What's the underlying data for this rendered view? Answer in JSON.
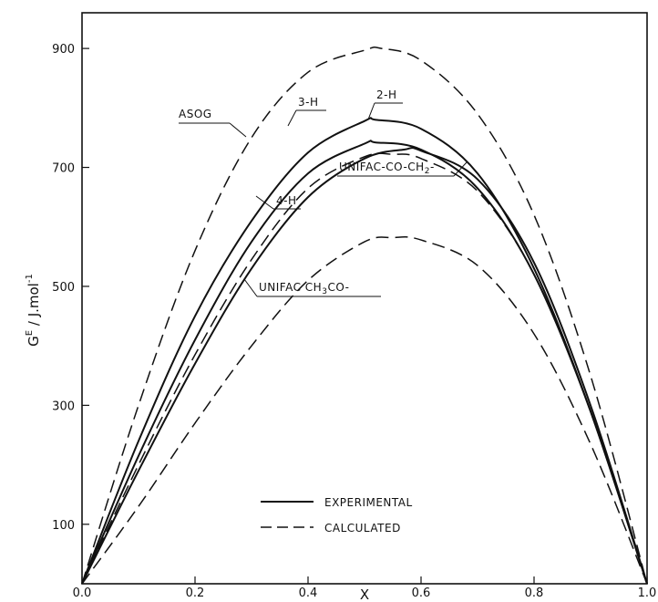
{
  "chart_data": {
    "type": "line",
    "xlabel": "X",
    "ylabel": "G^E / J.mol^-1",
    "xlim": [
      0,
      1
    ],
    "ylim": [
      0,
      960
    ],
    "x_ticks": [
      "0.0",
      "0.2",
      "0.4",
      "0.6",
      "0.8",
      "1.0"
    ],
    "y_ticks": [
      "100",
      "300",
      "500",
      "700",
      "900"
    ],
    "legend": {
      "placement": "bottom-center",
      "entries": [
        {
          "label": "EXPERIMENTAL",
          "style": "solid"
        },
        {
          "label": "CALCULATED",
          "style": "dashed"
        }
      ]
    },
    "series": [
      {
        "name": "3-H",
        "style": "solid",
        "x": [
          0,
          0.1,
          0.2,
          0.3,
          0.4,
          0.5,
          0.52,
          0.6,
          0.7,
          0.8,
          0.9,
          1.0
        ],
        "y": [
          0,
          240,
          450,
          610,
          725,
          778,
          780,
          765,
          690,
          530,
          290,
          0
        ]
      },
      {
        "name": "2-H",
        "style": "solid",
        "x": [
          0,
          0.1,
          0.2,
          0.3,
          0.4,
          0.5,
          0.52,
          0.6,
          0.7,
          0.8,
          0.9,
          1.0
        ],
        "y": [
          0,
          215,
          410,
          575,
          690,
          740,
          742,
          730,
          665,
          520,
          290,
          0
        ]
      },
      {
        "name": "4-H",
        "style": "solid",
        "x": [
          0,
          0.1,
          0.2,
          0.3,
          0.4,
          0.5,
          0.57,
          0.6,
          0.7,
          0.8,
          0.9,
          1.0
        ],
        "y": [
          0,
          190,
          370,
          530,
          650,
          715,
          730,
          728,
          680,
          540,
          300,
          0
        ]
      },
      {
        "name": "ASOG",
        "style": "dashed",
        "x": [
          0,
          0.1,
          0.2,
          0.3,
          0.4,
          0.5,
          0.53,
          0.6,
          0.7,
          0.8,
          0.9,
          1.0
        ],
        "y": [
          0,
          300,
          560,
          750,
          860,
          897,
          900,
          880,
          790,
          620,
          350,
          0
        ]
      },
      {
        "name": "UNIFAC-CO-CH2-",
        "style": "dashed",
        "x": [
          0,
          0.1,
          0.2,
          0.3,
          0.4,
          0.5,
          0.55,
          0.6,
          0.7,
          0.8,
          0.9,
          1.0
        ],
        "y": [
          0,
          200,
          385,
          545,
          665,
          718,
          722,
          715,
          660,
          520,
          290,
          0
        ]
      },
      {
        "name": "UNIFAC CH3CO-",
        "style": "dashed",
        "x": [
          0,
          0.1,
          0.2,
          0.3,
          0.4,
          0.5,
          0.55,
          0.6,
          0.7,
          0.8,
          0.9,
          1.0
        ],
        "y": [
          0,
          130,
          270,
          400,
          510,
          575,
          582,
          578,
          535,
          420,
          235,
          0
        ]
      }
    ]
  }
}
